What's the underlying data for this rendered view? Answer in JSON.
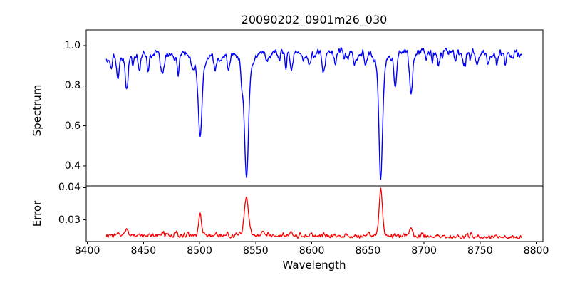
{
  "figure": {
    "background": "#ffffff",
    "axis_color": "#000000"
  },
  "chart_data": {
    "type": "line",
    "title": "20090202_0901m26_030",
    "xlabel": "Wavelength",
    "xlim": [
      8399,
      8806
    ],
    "x_data_range": [
      8417,
      8787
    ],
    "x_ticks": [
      8400,
      8450,
      8500,
      8550,
      8600,
      8650,
      8700,
      8750,
      8800
    ],
    "x_tick_labels": [
      "8400",
      "8450",
      "8500",
      "8550",
      "8600",
      "8650",
      "8700",
      "8750",
      "8800"
    ],
    "sample_step": 0.5,
    "noise_seed": 42,
    "grid": false,
    "legend": "none",
    "panels": [
      {
        "name": "spectrum",
        "ylabel": "Spectrum",
        "color": "#0000ff",
        "ylim": [
          0.301,
          1.078
        ],
        "y_ticks": [
          0.4,
          0.6,
          0.8,
          1.0
        ],
        "y_tick_labels": [
          "0.4",
          "0.6",
          "0.8",
          "1.0"
        ],
        "continuum_points": [
          [
            8417,
            0.945
          ],
          [
            8450,
            0.958
          ],
          [
            8500,
            0.962
          ],
          [
            8550,
            0.965
          ],
          [
            8620,
            0.972
          ],
          [
            8700,
            0.97
          ],
          [
            8760,
            0.962
          ],
          [
            8787,
            0.972
          ]
        ],
        "noise_sigma": 0.011,
        "weak_line_count": 52,
        "weak_line_depth_range": [
          0.012,
          0.042
        ],
        "absorption_lines": [
          {
            "center": 8421.5,
            "depth": 0.05,
            "sigma": 0.8
          },
          {
            "center": 8427.0,
            "depth": 0.1,
            "sigma": 1.1
          },
          {
            "center": 8435.0,
            "depth": 0.13,
            "sigma": 1.4
          },
          {
            "center": 8440.5,
            "depth": 0.06,
            "sigma": 0.9
          },
          {
            "center": 8446.5,
            "depth": 0.05,
            "sigma": 0.8
          },
          {
            "center": 8454.0,
            "depth": 0.06,
            "sigma": 1.0
          },
          {
            "center": 8467.5,
            "depth": 0.1,
            "sigma": 1.3
          },
          {
            "center": 8481.0,
            "depth": 0.05,
            "sigma": 0.9
          },
          {
            "center": 8500.5,
            "depth": 0.33,
            "sigma": 1.5
          },
          {
            "center": 8500.5,
            "depth": 0.09,
            "sigma": 4.5
          },
          {
            "center": 8514.0,
            "depth": 0.08,
            "sigma": 1.1
          },
          {
            "center": 8526.0,
            "depth": 0.06,
            "sigma": 0.9
          },
          {
            "center": 8538.0,
            "depth": 0.05,
            "sigma": 0.9
          },
          {
            "center": 8541.8,
            "depth": 0.52,
            "sigma": 1.7
          },
          {
            "center": 8541.8,
            "depth": 0.1,
            "sigma": 5.0
          },
          {
            "center": 8560.0,
            "depth": 0.05,
            "sigma": 0.9
          },
          {
            "center": 8571.0,
            "depth": 0.04,
            "sigma": 0.8
          },
          {
            "center": 8582.0,
            "depth": 0.09,
            "sigma": 1.1
          },
          {
            "center": 8598.0,
            "depth": 0.07,
            "sigma": 1.0
          },
          {
            "center": 8611.0,
            "depth": 0.1,
            "sigma": 1.1
          },
          {
            "center": 8621.0,
            "depth": 0.07,
            "sigma": 0.9
          },
          {
            "center": 8632.0,
            "depth": 0.05,
            "sigma": 0.8
          },
          {
            "center": 8648.0,
            "depth": 0.08,
            "sigma": 1.0
          },
          {
            "center": 8661.5,
            "depth": 0.51,
            "sigma": 1.5
          },
          {
            "center": 8661.5,
            "depth": 0.1,
            "sigma": 4.5
          },
          {
            "center": 8674.5,
            "depth": 0.14,
            "sigma": 1.2
          },
          {
            "center": 8688.5,
            "depth": 0.2,
            "sigma": 1.4
          },
          {
            "center": 8702.0,
            "depth": 0.05,
            "sigma": 0.9
          },
          {
            "center": 8713.0,
            "depth": 0.07,
            "sigma": 1.0
          },
          {
            "center": 8728.0,
            "depth": 0.05,
            "sigma": 0.9
          },
          {
            "center": 8736.5,
            "depth": 0.07,
            "sigma": 1.0
          },
          {
            "center": 8747.0,
            "depth": 0.05,
            "sigma": 0.8
          },
          {
            "center": 8757.0,
            "depth": 0.06,
            "sigma": 0.9
          },
          {
            "center": 8765.0,
            "depth": 0.05,
            "sigma": 0.8
          },
          {
            "center": 8772.5,
            "depth": 0.06,
            "sigma": 0.9
          },
          {
            "center": 8779.0,
            "depth": 0.04,
            "sigma": 0.8
          }
        ]
      },
      {
        "name": "error",
        "ylabel": "Error",
        "color": "#ff0000",
        "ylim": [
          0.0233,
          0.0405
        ],
        "y_ticks": [
          0.03,
          0.04
        ],
        "y_tick_labels": [
          "0.03",
          "0.04"
        ],
        "baseline_points": [
          [
            8417,
            0.0252
          ],
          [
            8600,
            0.0249
          ],
          [
            8787,
            0.0246
          ]
        ],
        "noise_sigma": 0.00035,
        "bump_count": 30,
        "emission_peaks": [
          {
            "center": 8427.0,
            "amp": 0.0008,
            "sigma": 1.2
          },
          {
            "center": 8435.0,
            "amp": 0.0018,
            "sigma": 1.4
          },
          {
            "center": 8467.5,
            "amp": 0.0008,
            "sigma": 1.2
          },
          {
            "center": 8500.5,
            "amp": 0.0068,
            "sigma": 1.3
          },
          {
            "center": 8514.0,
            "amp": 0.0008,
            "sigma": 1.0
          },
          {
            "center": 8541.8,
            "amp": 0.0108,
            "sigma": 1.7
          },
          {
            "center": 8541.8,
            "amp": 0.0015,
            "sigma": 4.0
          },
          {
            "center": 8556.0,
            "amp": 0.0016,
            "sigma": 1.0
          },
          {
            "center": 8582.0,
            "amp": 0.0007,
            "sigma": 1.0
          },
          {
            "center": 8611.0,
            "amp": 0.0008,
            "sigma": 1.0
          },
          {
            "center": 8661.5,
            "amp": 0.0135,
            "sigma": 1.4
          },
          {
            "center": 8661.5,
            "amp": 0.0012,
            "sigma": 4.0
          },
          {
            "center": 8674.5,
            "amp": 0.001,
            "sigma": 1.0
          },
          {
            "center": 8688.5,
            "amp": 0.0028,
            "sigma": 1.2
          },
          {
            "center": 8713.0,
            "amp": 0.0007,
            "sigma": 1.0
          }
        ]
      }
    ]
  }
}
